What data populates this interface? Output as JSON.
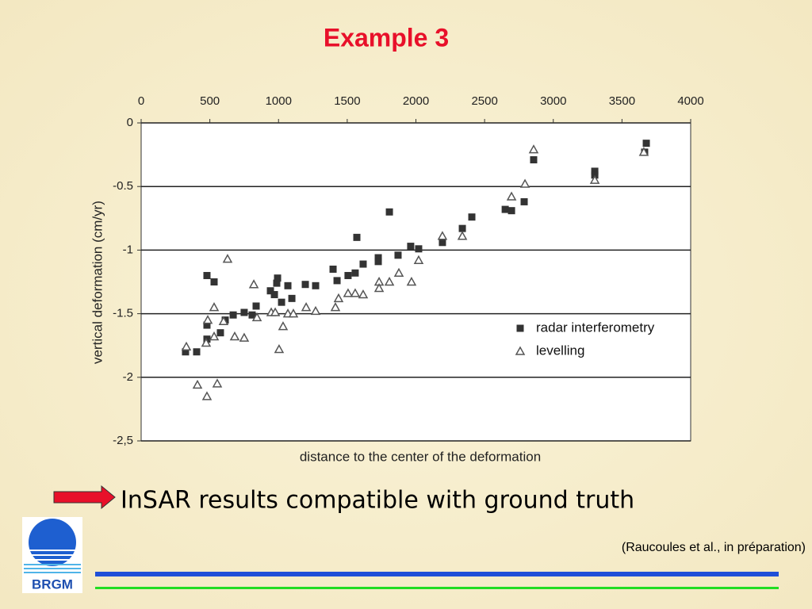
{
  "chart_data": {
    "type": "scatter",
    "title": "Example 3",
    "xlabel": "distance to the center of the deformation",
    "ylabel": "vertical deformation (cm/yr)",
    "xlim": [
      0,
      4000
    ],
    "xticks": [
      0,
      500,
      1000,
      1500,
      2000,
      2500,
      3000,
      3500,
      4000
    ],
    "ylim": [
      -2.5,
      0
    ],
    "yticks": [
      0,
      -0.5,
      -1,
      -1.5,
      -2,
      {
        "value": -2.5,
        "label": "-2,5"
      }
    ],
    "grid": true,
    "legend": "right",
    "series": [
      {
        "name": "radar interferometry",
        "color": "#333333",
        "marker": "square",
        "x": [
          323,
          404,
          479,
          479,
          479,
          531,
          577,
          612,
          670,
          750,
          808,
          837,
          941,
          970,
          987,
          993,
          1022,
          1068,
          1097,
          1195,
          1270,
          1397,
          1426,
          1506,
          1558,
          1570,
          1616,
          1726,
          1726,
          1807,
          1870,
          1962,
          2020,
          2193,
          2338,
          2407,
          2650,
          2696,
          2788,
          2857,
          3302,
          3302,
          3665,
          3677
        ],
        "values": [
          -1.8,
          -1.8,
          -1.2,
          -1.59,
          -1.7,
          -1.25,
          -1.65,
          -1.55,
          -1.51,
          -1.49,
          -1.51,
          -1.44,
          -1.32,
          -1.35,
          -1.26,
          -1.22,
          -1.41,
          -1.28,
          -1.38,
          -1.27,
          -1.28,
          -1.15,
          -1.24,
          -1.2,
          -1.18,
          -0.9,
          -1.11,
          -1.06,
          -1.09,
          -0.7,
          -1.04,
          -0.97,
          -0.99,
          -0.94,
          -0.83,
          -0.74,
          -0.68,
          -0.69,
          -0.62,
          -0.29,
          -0.38,
          -0.41,
          -0.23,
          -0.16
        ]
      },
      {
        "name": "levelling",
        "color": "#555555",
        "marker": "triangle",
        "x": [
          329,
          410,
          479,
          485,
          473,
          531,
          531,
          554,
          600,
          629,
          681,
          750,
          820,
          843,
          947,
          976,
          1004,
          1033,
          1068,
          1108,
          1201,
          1270,
          1414,
          1437,
          1506,
          1558,
          1616,
          1732,
          1732,
          1807,
          1876,
          1968,
          2020,
          2193,
          2338,
          2696,
          2794,
          2857,
          3302,
          3659
        ],
        "values": [
          -1.76,
          -2.06,
          -2.15,
          -1.55,
          -1.73,
          -1.68,
          -1.45,
          -2.05,
          -1.56,
          -1.07,
          -1.68,
          -1.69,
          -1.27,
          -1.53,
          -1.49,
          -1.49,
          -1.78,
          -1.6,
          -1.5,
          -1.5,
          -1.45,
          -1.48,
          -1.45,
          -1.38,
          -1.34,
          -1.34,
          -1.35,
          -1.25,
          -1.3,
          -1.25,
          -1.18,
          -1.25,
          -1.08,
          -0.89,
          -0.89,
          -0.58,
          -0.48,
          -0.21,
          -0.45,
          -0.23
        ]
      }
    ]
  },
  "caption": "InSAR results compatible with ground truth",
  "citation": "(Raucoules et al., in préparation)",
  "logo": "BRGM"
}
